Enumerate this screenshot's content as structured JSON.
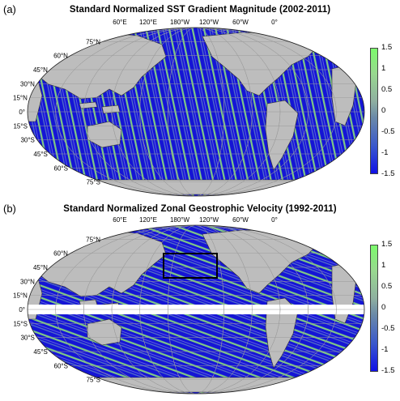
{
  "panels": [
    {
      "label": "(a)",
      "title": "Standard Normalized SST Gradient Magnitude (2002-2011)",
      "lon_labels": [
        "60°E",
        "120°E",
        "180°W",
        "120°W",
        "60°W",
        "0°"
      ],
      "lat_labels": [
        "75°N",
        "60°N",
        "45°N",
        "30°N",
        "15°N",
        "0°",
        "15°S",
        "30°S",
        "45°S",
        "60°S",
        "75°S"
      ],
      "colorbar_ticks": [
        "1.5",
        "1",
        "0.5",
        "0",
        "-0.5",
        "-1",
        "-1.5"
      ],
      "has_box": false,
      "equator_mask": false
    },
    {
      "label": "(b)",
      "title": "Standard Normalized Zonal Geostrophic Velocity (1992-2011)",
      "lon_labels": [
        "60°E",
        "120°E",
        "180°W",
        "120°W",
        "60°W",
        "0°"
      ],
      "lat_labels": [
        "75°N",
        "60°N",
        "45°N",
        "30°N",
        "15°N",
        "0°",
        "15°S",
        "30°S",
        "45°S",
        "60°S",
        "75°S"
      ],
      "colorbar_ticks": [
        "1.5",
        "1",
        "0.5",
        "0",
        "-0.5",
        "-1",
        "-1.5"
      ],
      "has_box": true,
      "equator_mask": true
    }
  ],
  "colors": {
    "ocean_low": "#1414e0",
    "ocean_high": "#8de084",
    "land": "#bdbdbd",
    "grid": "#9a9a9a"
  }
}
